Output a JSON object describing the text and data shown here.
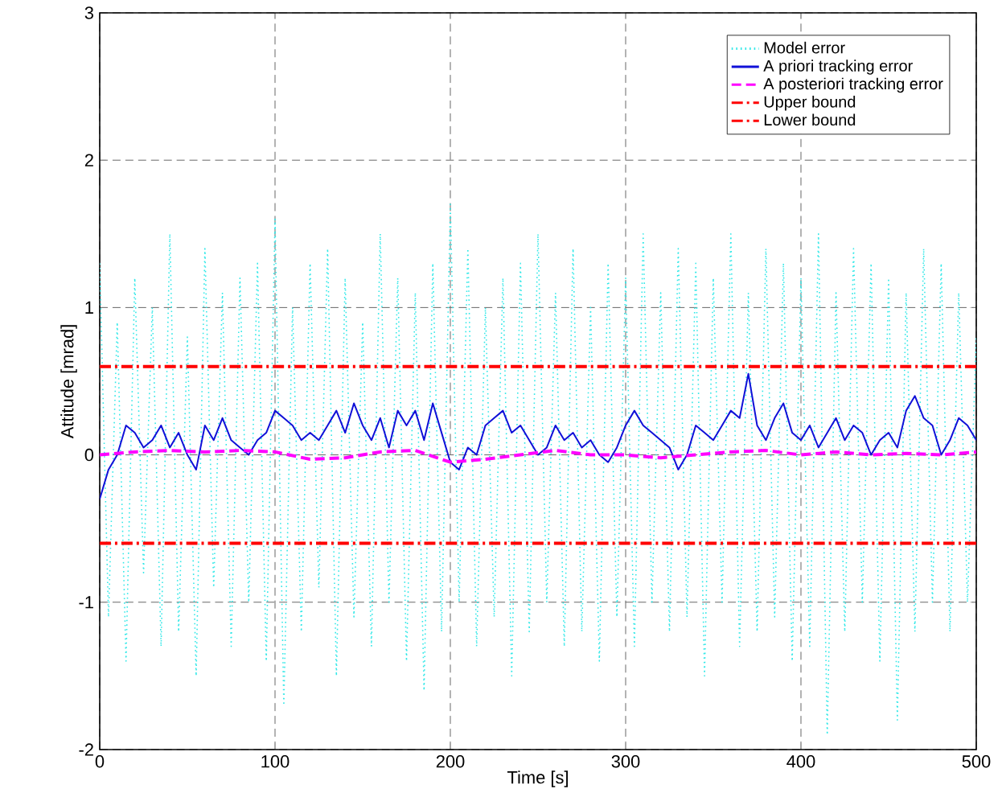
{
  "chart_data": {
    "type": "line",
    "xlabel": "Time [s]",
    "ylabel": "Attitude [mrad]",
    "xlim": [
      0,
      500
    ],
    "ylim": [
      -2,
      3
    ],
    "xticks": [
      0,
      100,
      200,
      300,
      400,
      500
    ],
    "yticks": [
      -2,
      -1,
      0,
      1,
      2,
      3
    ],
    "grid": true,
    "legend": "top right",
    "marker": "none",
    "x": [
      0,
      5,
      10,
      15,
      20,
      25,
      30,
      35,
      40,
      45,
      50,
      55,
      60,
      65,
      70,
      75,
      80,
      85,
      90,
      95,
      100,
      105,
      110,
      115,
      120,
      125,
      130,
      135,
      140,
      145,
      150,
      155,
      160,
      165,
      170,
      175,
      180,
      185,
      190,
      195,
      200,
      205,
      210,
      215,
      220,
      225,
      230,
      235,
      240,
      245,
      250,
      255,
      260,
      265,
      270,
      275,
      280,
      285,
      290,
      295,
      300,
      305,
      310,
      315,
      320,
      325,
      330,
      335,
      340,
      345,
      350,
      355,
      360,
      365,
      370,
      375,
      380,
      385,
      390,
      395,
      400,
      405,
      410,
      415,
      420,
      425,
      430,
      435,
      440,
      445,
      450,
      455,
      460,
      465,
      470,
      475,
      480,
      485,
      490,
      495,
      500
    ],
    "series": [
      {
        "name": "Model error",
        "color": "#33e8e8",
        "line_style": "dotted",
        "values": [
          1.3,
          -1.1,
          0.9,
          -1.4,
          1.2,
          -0.8,
          1.0,
          -1.3,
          1.5,
          -1.2,
          0.8,
          -1.5,
          1.4,
          -0.9,
          1.1,
          -1.3,
          1.2,
          -1.0,
          1.3,
          -1.4,
          1.6,
          -1.7,
          1.0,
          -1.2,
          1.3,
          -0.9,
          1.4,
          -1.5,
          1.2,
          -1.1,
          0.9,
          -1.3,
          1.5,
          -1.0,
          1.2,
          -1.4,
          1.1,
          -1.6,
          1.3,
          -1.2,
          1.7,
          -1.0,
          1.4,
          -1.3,
          1.0,
          -1.1,
          1.2,
          -1.5,
          1.3,
          -1.2,
          1.5,
          -1.0,
          1.1,
          -1.3,
          1.4,
          -1.2,
          1.0,
          -1.4,
          1.3,
          -1.1,
          1.2,
          -1.3,
          1.5,
          -1.0,
          1.1,
          -1.2,
          1.4,
          -1.1,
          1.3,
          -1.5,
          1.2,
          -1.0,
          1.5,
          -1.3,
          1.1,
          -1.2,
          1.4,
          -1.1,
          1.3,
          -1.4,
          1.2,
          -1.3,
          1.5,
          -1.9,
          1.1,
          -1.2,
          1.4,
          -1.0,
          1.3,
          -1.4,
          1.2,
          -1.8,
          1.1,
          -1.2,
          1.4,
          -1.0,
          1.3,
          -1.2,
          1.1,
          -1.0,
          0.8
        ]
      },
      {
        "name": "A priori tracking error",
        "color": "#1010d8",
        "line_style": "solid",
        "values": [
          -0.3,
          -0.1,
          0.0,
          0.2,
          0.15,
          0.05,
          0.1,
          0.2,
          0.05,
          0.15,
          0.0,
          -0.1,
          0.2,
          0.1,
          0.25,
          0.1,
          0.05,
          0.0,
          0.1,
          0.15,
          0.3,
          0.25,
          0.2,
          0.1,
          0.15,
          0.1,
          0.2,
          0.3,
          0.15,
          0.35,
          0.2,
          0.1,
          0.25,
          0.05,
          0.3,
          0.2,
          0.3,
          0.1,
          0.35,
          0.15,
          -0.05,
          -0.1,
          0.05,
          0.0,
          0.2,
          0.25,
          0.3,
          0.15,
          0.2,
          0.1,
          0.0,
          0.05,
          0.2,
          0.1,
          0.15,
          0.05,
          0.1,
          0.0,
          -0.05,
          0.05,
          0.2,
          0.3,
          0.2,
          0.15,
          0.1,
          0.05,
          -0.1,
          0.0,
          0.2,
          0.15,
          0.1,
          0.2,
          0.3,
          0.25,
          0.55,
          0.2,
          0.1,
          0.25,
          0.35,
          0.15,
          0.1,
          0.2,
          0.05,
          0.15,
          0.25,
          0.1,
          0.2,
          0.15,
          0.0,
          0.1,
          0.15,
          0.05,
          0.3,
          0.4,
          0.25,
          0.2,
          0.0,
          0.1,
          0.25,
          0.2,
          0.1
        ]
      },
      {
        "name": "A posteriori tracking error",
        "color": "#ff00ff",
        "line_style": "dashed",
        "x": [
          0,
          20,
          40,
          60,
          80,
          100,
          120,
          140,
          160,
          180,
          200,
          220,
          240,
          260,
          280,
          300,
          320,
          340,
          360,
          380,
          400,
          420,
          440,
          460,
          480,
          500
        ],
        "values": [
          0.0,
          0.02,
          0.03,
          0.02,
          0.03,
          0.02,
          -0.03,
          -0.02,
          0.02,
          0.03,
          -0.05,
          -0.03,
          0.0,
          0.03,
          0.0,
          0.0,
          -0.02,
          0.0,
          0.02,
          0.03,
          0.0,
          0.02,
          0.0,
          0.01,
          0.0,
          0.02
        ]
      },
      {
        "name": "Upper bound",
        "color": "#ff0000",
        "line_style": "dashdot",
        "x": [
          0,
          500
        ],
        "values": [
          0.6,
          0.6
        ]
      },
      {
        "name": "Lower bound",
        "color": "#ff0000",
        "line_style": "dashdot",
        "x": [
          0,
          500
        ],
        "values": [
          -0.6,
          -0.6
        ]
      }
    ]
  }
}
